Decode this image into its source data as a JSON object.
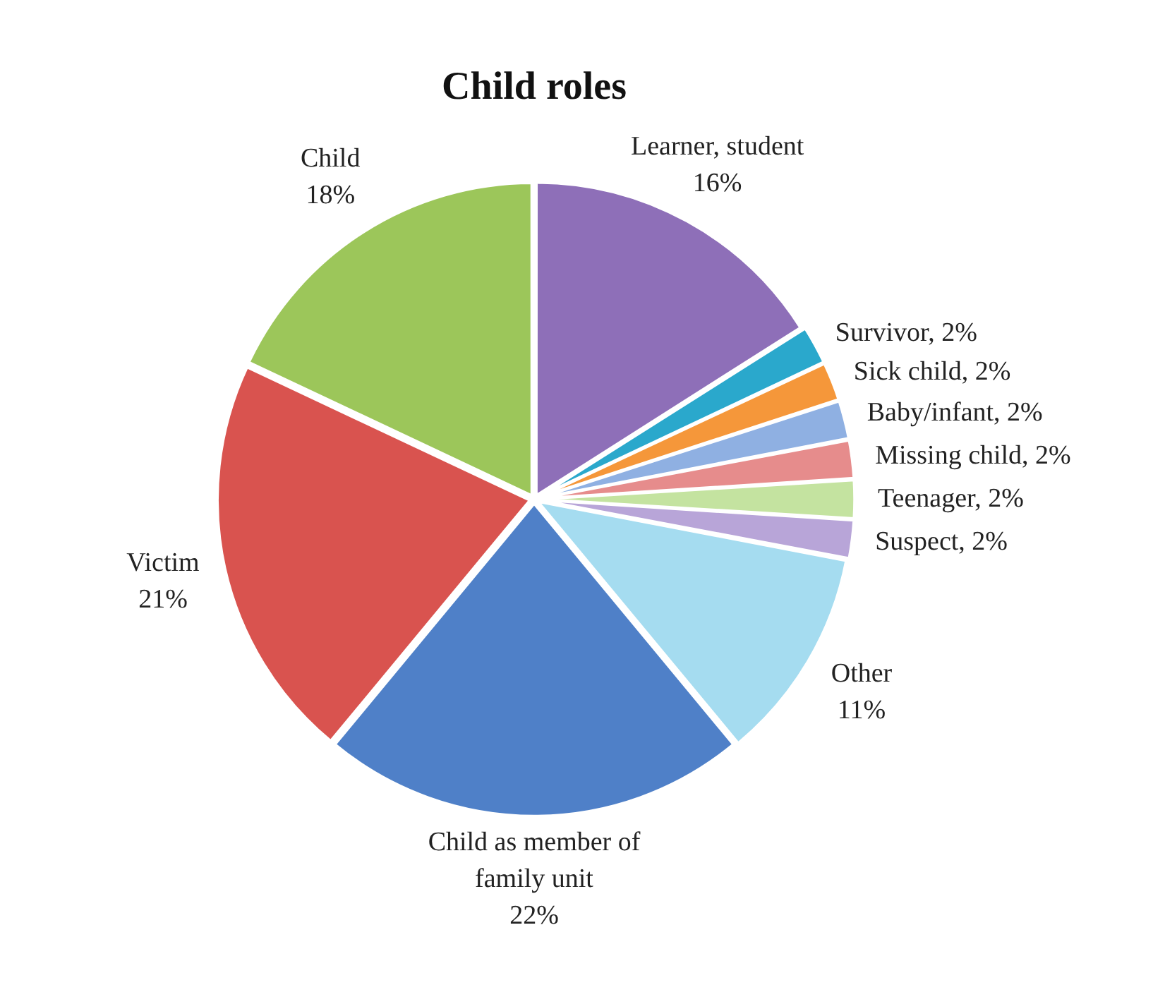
{
  "chart_data": {
    "type": "pie",
    "title": "Child roles",
    "categories": [
      "Learner, student",
      "Survivor",
      "Sick child",
      "Baby/infant",
      "Missing child",
      "Teenager",
      "Suspect",
      "Other",
      "Child as member of family unit",
      "Victim",
      "Child"
    ],
    "values": [
      16,
      2,
      2,
      2,
      2,
      2,
      2,
      11,
      22,
      21,
      18
    ],
    "value_labels": [
      "16%",
      "2%",
      "2%",
      "2%",
      "2%",
      "2%",
      "2%",
      "11%",
      "22%",
      "21%",
      "18%"
    ],
    "colors": [
      "#8e6fb8",
      "#2aa8cc",
      "#f5973a",
      "#8fb0e2",
      "#e68c8c",
      "#c4e3a0",
      "#b8a5d8",
      "#a5dcf0",
      "#4f80c8",
      "#d9534f",
      "#9cc65a"
    ],
    "legend": false
  }
}
